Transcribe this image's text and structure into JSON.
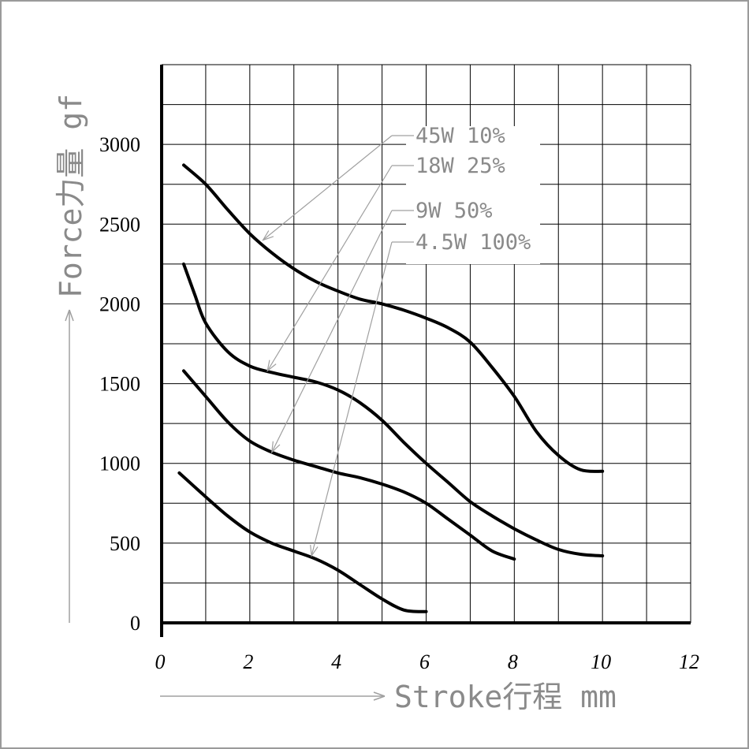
{
  "chart_data": {
    "type": "line",
    "xlabel": "Stroke行程 mm",
    "ylabel": "Force力量 gf",
    "xlim": [
      0,
      12
    ],
    "ylim": [
      0,
      3500
    ],
    "x_ticks": [
      0,
      2,
      4,
      6,
      8,
      10,
      12
    ],
    "y_ticks": [
      0,
      500,
      1000,
      1500,
      2000,
      2500,
      3000
    ],
    "grid": true,
    "grid_x_step": 1,
    "grid_y_step": 250,
    "series": [
      {
        "name": "45W 10%",
        "x": [
          0.5,
          1.0,
          1.5,
          2.0,
          2.5,
          3.0,
          3.5,
          4.0,
          4.5,
          5.0,
          5.5,
          6.0,
          6.5,
          7.0,
          7.5,
          8.0,
          8.5,
          9.0,
          9.5,
          10.0
        ],
        "y": [
          2870,
          2750,
          2590,
          2440,
          2320,
          2220,
          2140,
          2080,
          2030,
          2000,
          1960,
          1910,
          1850,
          1760,
          1600,
          1420,
          1200,
          1050,
          960,
          950
        ]
      },
      {
        "name": "18W 25%",
        "x": [
          0.5,
          0.75,
          1.0,
          1.5,
          2.0,
          2.5,
          3.0,
          3.5,
          4.0,
          4.5,
          5.0,
          5.5,
          6.0,
          6.5,
          7.0,
          7.5,
          8.0,
          8.5,
          9.0,
          9.5,
          10.0
        ],
        "y": [
          2250,
          2060,
          1880,
          1700,
          1610,
          1570,
          1540,
          1510,
          1460,
          1380,
          1270,
          1130,
          1000,
          880,
          760,
          670,
          590,
          520,
          460,
          430,
          420
        ]
      },
      {
        "name": "9W 50%",
        "x": [
          0.5,
          1.0,
          1.5,
          2.0,
          2.5,
          3.0,
          3.5,
          4.0,
          4.5,
          5.0,
          5.5,
          6.0,
          6.5,
          7.0,
          7.5,
          8.0
        ],
        "y": [
          1580,
          1420,
          1260,
          1140,
          1070,
          1020,
          980,
          940,
          910,
          870,
          820,
          750,
          650,
          550,
          450,
          400
        ]
      },
      {
        "name": "4.5W 100%",
        "x": [
          0.4,
          1.0,
          1.5,
          2.0,
          2.5,
          3.0,
          3.5,
          4.0,
          4.5,
          5.0,
          5.5,
          6.0
        ],
        "y": [
          940,
          790,
          670,
          570,
          500,
          450,
          400,
          330,
          240,
          150,
          80,
          70
        ]
      }
    ],
    "annotations": [
      {
        "label": "45W 10%",
        "series": 0,
        "x": 2.3,
        "y": 2400
      },
      {
        "label": "18W 25%",
        "series": 1,
        "x": 2.4,
        "y": 1580
      },
      {
        "label": "9W 50%",
        "series": 2,
        "x": 2.5,
        "y": 1070
      },
      {
        "label": "4.5W 100%",
        "series": 3,
        "x": 3.4,
        "y": 420
      }
    ],
    "colors": {
      "line": "#000000",
      "grid": "#000000",
      "annotation": "#a0a0a0"
    }
  }
}
